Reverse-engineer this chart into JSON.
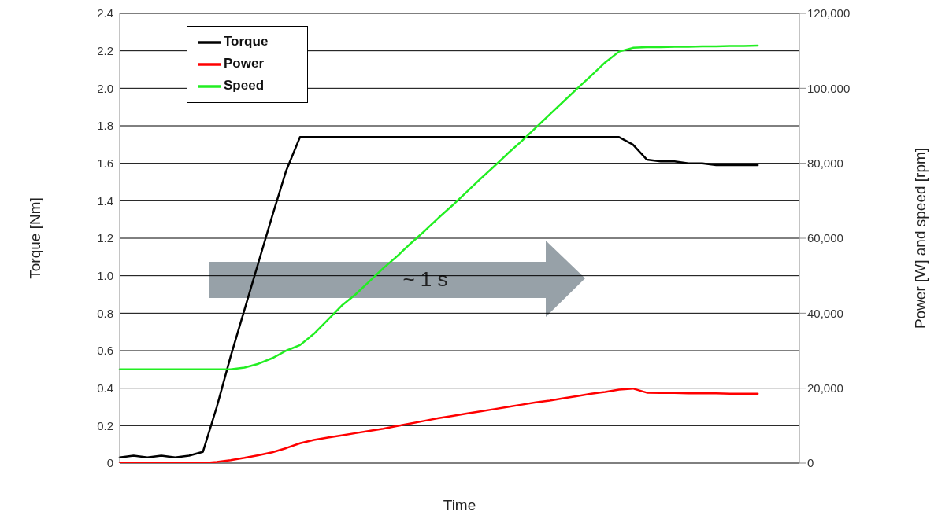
{
  "chart_data": {
    "type": "line",
    "xlabel": "Time",
    "ylabel": "Torque [Nm]",
    "y2label": "Power [W] and speed [rpm]",
    "categories": [
      null,
      null,
      null,
      null,
      null,
      null,
      null,
      null,
      null,
      null,
      null,
      null,
      null,
      null,
      null,
      null,
      null,
      null,
      null,
      null,
      null,
      null,
      null,
      null,
      null,
      null,
      null,
      null,
      null,
      null,
      null,
      null,
      null,
      null,
      null,
      null,
      null,
      null,
      null,
      null,
      null,
      null,
      null,
      null,
      null,
      null,
      null,
      null,
      null,
      null
    ],
    "series": [
      {
        "name": "Torque",
        "color": "#000000",
        "values": [
          0.03,
          0.04,
          0.03,
          0.04,
          0.03,
          0.04,
          0.06,
          0.3,
          0.57,
          0.82,
          1.07,
          1.32,
          1.56,
          1.74,
          1.74,
          1.74,
          1.74,
          1.74,
          1.74,
          1.74,
          1.74,
          1.74,
          1.74,
          1.74,
          1.74,
          1.74,
          1.74,
          1.74,
          1.74,
          1.74,
          1.74,
          1.74,
          1.74,
          1.74,
          1.74,
          1.74,
          1.74,
          1.7,
          1.62,
          1.61,
          1.61,
          1.6,
          1.6,
          1.59,
          1.59,
          1.59,
          1.59,
          null,
          null,
          null
        ]
      },
      {
        "name": "Power",
        "color": "#ff0000",
        "axis": "y2",
        "values": [
          0,
          0,
          0,
          0,
          0,
          0,
          0,
          300,
          800,
          1400,
          2100,
          2900,
          4000,
          5300,
          6200,
          6800,
          7400,
          8000,
          8600,
          9200,
          9900,
          10600,
          11300,
          12000,
          12600,
          13200,
          13800,
          14400,
          15000,
          15600,
          16200,
          16700,
          17300,
          17900,
          18500,
          19000,
          19600,
          19900,
          18800,
          18700,
          18700,
          18600,
          18600,
          18600,
          18500,
          18500,
          18500,
          null,
          null,
          null
        ]
      },
      {
        "name": "Speed",
        "color": "#22ee22",
        "axis": "y2",
        "values": [
          25000,
          25000,
          25000,
          25000,
          25000,
          25000,
          25000,
          25000,
          25000,
          25500,
          26500,
          28000,
          30000,
          31500,
          34500,
          38200,
          42000,
          45000,
          48500,
          52000,
          55200,
          58700,
          62000,
          65500,
          68800,
          72300,
          75800,
          79200,
          82700,
          86000,
          89500,
          93000,
          96500,
          100000,
          103400,
          106900,
          109800,
          110800,
          111000,
          111000,
          111100,
          111100,
          111200,
          111200,
          111300,
          111300,
          111400,
          null,
          null,
          null
        ]
      }
    ],
    "ylim": [
      0,
      2.4
    ],
    "yticks": [
      0,
      0.2,
      0.4,
      0.6,
      0.8,
      {
        "value": 1,
        "label": "1.0"
      },
      1.2,
      1.4,
      1.6,
      1.8,
      {
        "value": 2,
        "label": "2.0"
      },
      2.2,
      2.4
    ],
    "y2lim": [
      0,
      120000
    ],
    "y2ticks": [
      0,
      {
        "value": 20000,
        "label": "20,000"
      },
      {
        "value": 40000,
        "label": "40,000"
      },
      {
        "value": 60000,
        "label": "60,000"
      },
      {
        "value": 80000,
        "label": "80,000"
      },
      {
        "value": 100000,
        "label": "100,000"
      },
      {
        "value": 120000,
        "label": "120,000"
      }
    ],
    "grid": "y",
    "legend": "top left",
    "marker": "none",
    "line_style": "solid",
    "annotations": [
      "~ 1 s"
    ]
  }
}
